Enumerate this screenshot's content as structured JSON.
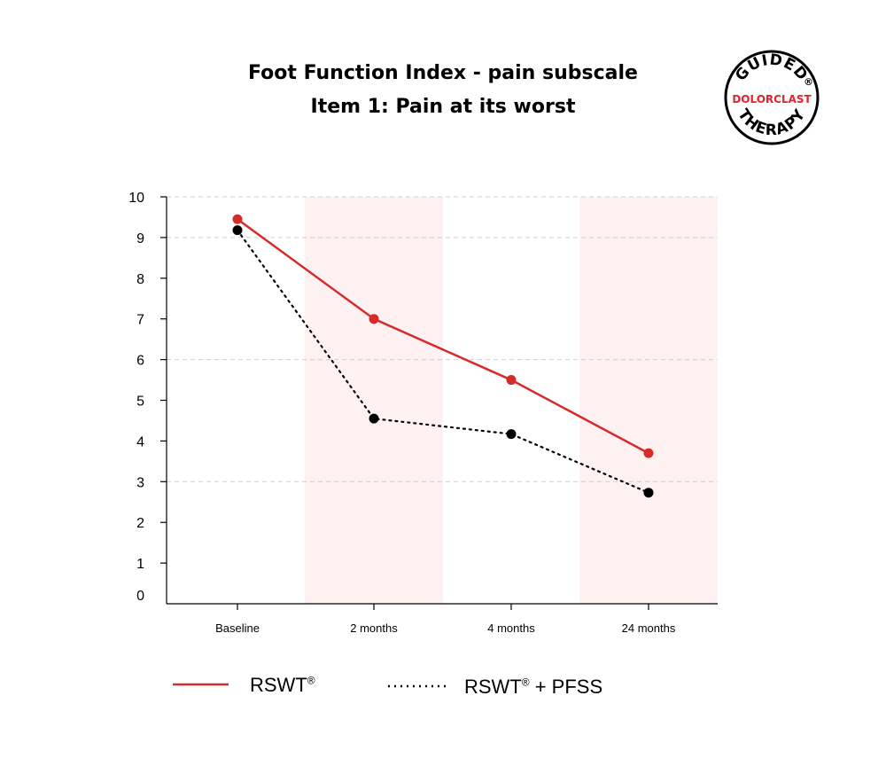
{
  "chart_data": {
    "type": "line",
    "title": "Foot Function Index - pain subscale",
    "subtitle": "Item 1: Pain at its worst",
    "categories": [
      "Baseline",
      "2 months",
      "4 months",
      "24 months"
    ],
    "ylim": [
      0,
      10
    ],
    "yticks": [
      0,
      1,
      2,
      3,
      4,
      5,
      6,
      7,
      8,
      9,
      10
    ],
    "grid": "horizontal dashed",
    "shaded_categories": [
      "2 months",
      "24 months"
    ],
    "series": [
      {
        "name": "RSWT®",
        "name_main": "RSWT",
        "name_mark": "®",
        "style": "solid",
        "color": "#d62b2b",
        "values": [
          9.45,
          7.0,
          5.5,
          3.7
        ]
      },
      {
        "name": "RSWT® + PFSS",
        "name_main": "RSWT",
        "name_mark": "®",
        "name_rest": " + PFSS",
        "style": "dotted",
        "color": "#000000",
        "values": [
          9.18,
          4.55,
          4.17,
          2.73
        ]
      }
    ]
  },
  "logo": {
    "top_text": "GUIDED",
    "middle_text": "DOLORCLAST",
    "bottom_text": "THERAPY",
    "mark": "®",
    "accent": "#e8202a"
  }
}
